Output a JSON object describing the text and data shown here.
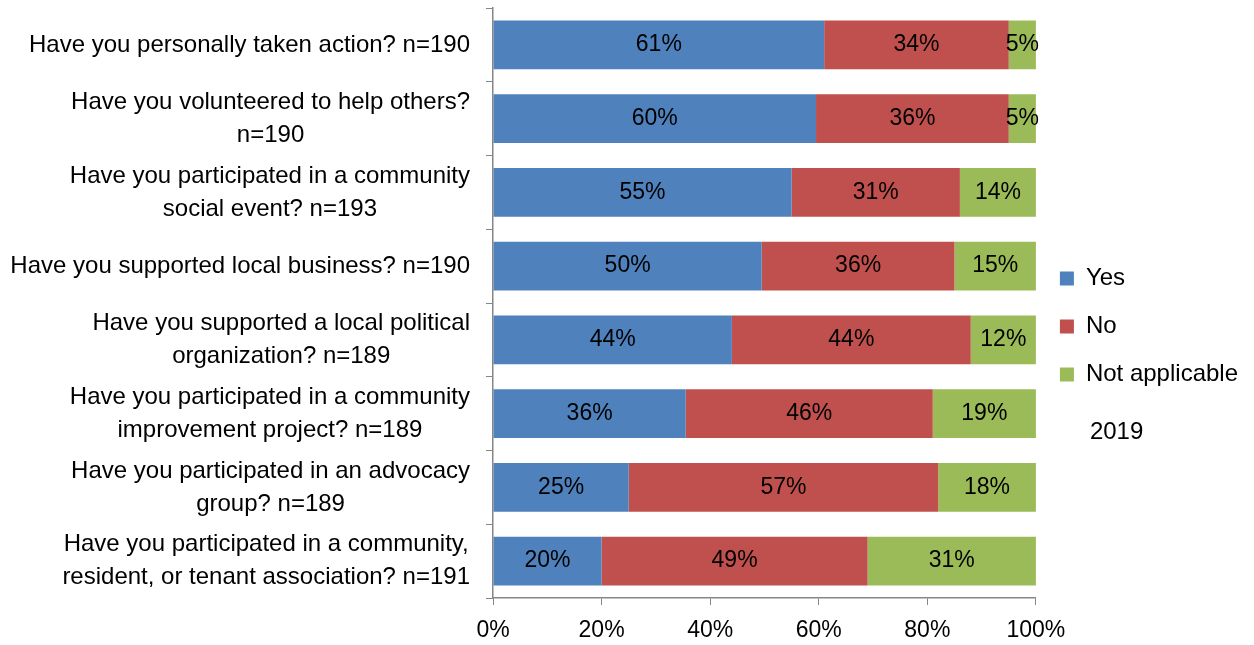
{
  "chart_data": {
    "type": "bar",
    "orientation": "horizontal",
    "stacked": true,
    "categories": [
      "Have you personally taken action? n=190",
      "Have you volunteered to help others? n=190",
      "Have you participated in a community social event? n=193",
      "Have you supported local business? n=190",
      "Have you supported a local political organization? n=189",
      "Have you participated in a community improvement project? n=189",
      "Have you participated in an advocacy group? n=189",
      "Have you participated in a community, resident, or tenant association? n=191"
    ],
    "series": [
      {
        "name": "Yes",
        "color": "#4f81bd",
        "values": [
          61,
          59.5,
          55,
          49.5,
          44,
          35.5,
          25,
          20
        ],
        "value_labels": [
          "61%",
          "60%",
          "55%",
          "50%",
          "44%",
          "36%",
          "25%",
          "20%"
        ]
      },
      {
        "name": "No",
        "color": "#c0504d",
        "values": [
          34,
          35.5,
          31,
          35.5,
          44,
          45.5,
          57,
          49
        ],
        "value_labels": [
          "34%",
          "36%",
          "31%",
          "36%",
          "44%",
          "46%",
          "57%",
          "49%"
        ]
      },
      {
        "name": "Not applicable",
        "color": "#9bbb59",
        "values": [
          5,
          5,
          14,
          15,
          12,
          19,
          18,
          31
        ],
        "value_labels": [
          "5%",
          "5%",
          "14%",
          "15%",
          "12%",
          "19%",
          "18%",
          "31%"
        ]
      }
    ],
    "xlim": [
      0,
      100
    ],
    "xticks": [
      {
        "value": 0,
        "label": "0%"
      },
      {
        "value": 20,
        "label": "20%"
      },
      {
        "value": 40,
        "label": "40%"
      },
      {
        "value": 60,
        "label": "60%"
      },
      {
        "value": 80,
        "label": "80%"
      },
      {
        "value": 100,
        "label": "100%"
      }
    ],
    "legend": "right",
    "annotations": [
      "2019"
    ]
  }
}
